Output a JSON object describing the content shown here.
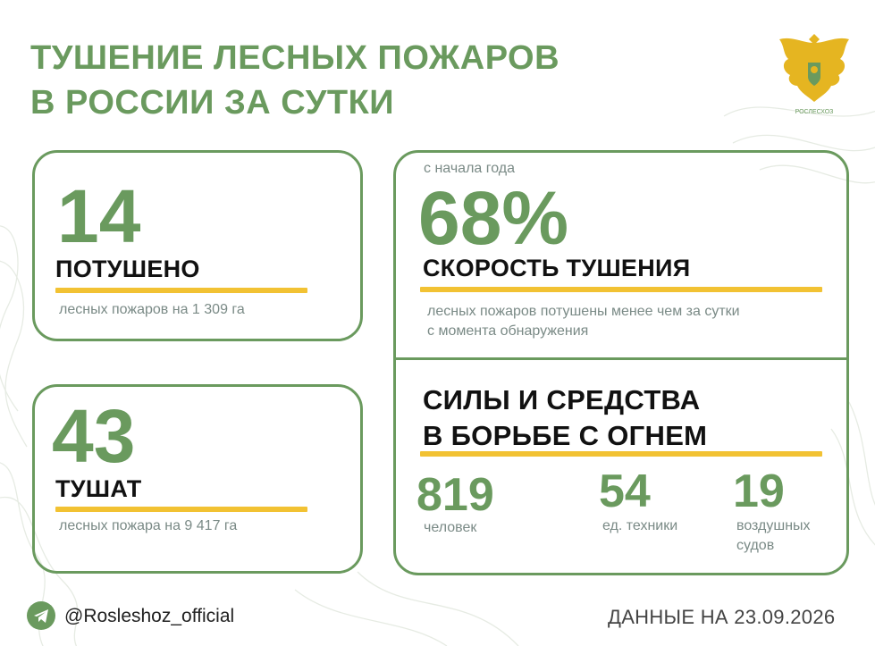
{
  "title": "ТУШЕНИЕ ЛЕСНЫХ ПОЖАРОВ\nВ РОССИИ ЗА СУТКИ",
  "emblem": {
    "icon": "coat-of-arms-eagle",
    "caption": "РОСЛЕСХОЗ"
  },
  "extinguished": {
    "number": "14",
    "label": "ПОТУШЕНО",
    "detail": "лесных пожаров на 1 309 га"
  },
  "ongoing": {
    "number": "43",
    "label": "ТУШАТ",
    "detail": "лесных пожара на 9 417 га"
  },
  "speed": {
    "caption": "с начала года",
    "number": "68%",
    "label": "СКОРОСТЬ ТУШЕНИЯ",
    "detail_line1": "лесных пожаров потушены менее чем за сутки",
    "detail_line2": "с момента обнаружения"
  },
  "forces": {
    "title": "СИЛЫ И СРЕДСТВА\nВ БОРЬБЕ С ОГНЕМ",
    "items": [
      {
        "value": "819",
        "label": "человек"
      },
      {
        "value": "54",
        "label": "ед. техники"
      },
      {
        "value": "19",
        "label_line1": "воздушных",
        "label_line2": "судов"
      }
    ]
  },
  "footer": {
    "telegram_handle": "@Rosleshoz_official",
    "date_text": "ДАННЫЕ НА 23.09.2026"
  },
  "colors": {
    "green": "#6a9a5e",
    "yellow": "#f2c233",
    "text": "#111111",
    "muted": "#7a8a86"
  }
}
